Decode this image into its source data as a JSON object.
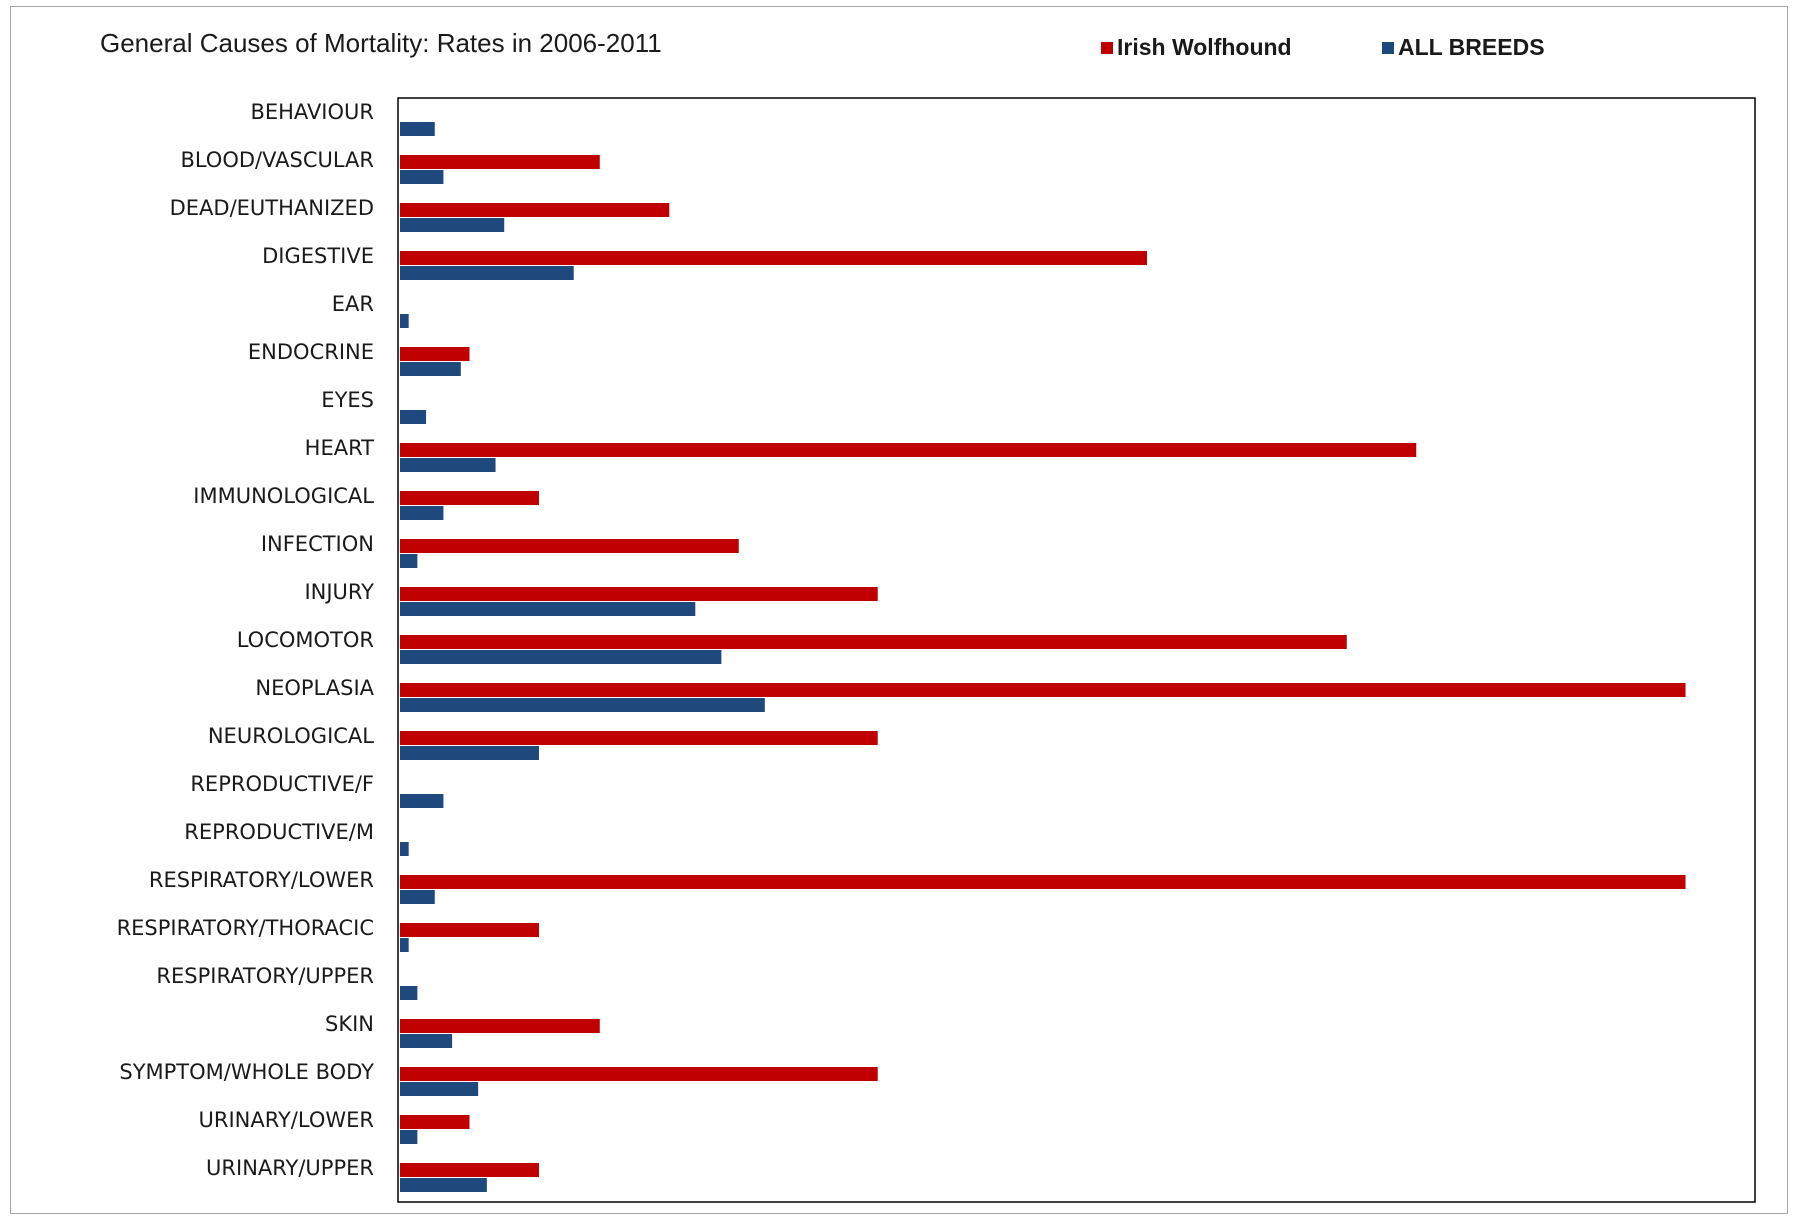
{
  "chart_data": {
    "type": "bar",
    "orientation": "horizontal",
    "title": "General Causes of Mortality: Rates in 2006-2011",
    "xlabel": "",
    "ylabel": "",
    "grid": false,
    "legend_position": "top-right",
    "categories": [
      "BEHAVIOUR",
      "BLOOD/VASCULAR",
      "DEAD/EUTHANIZED",
      "DIGESTIVE",
      "EAR",
      "ENDOCRINE",
      "EYES",
      "HEART",
      "IMMUNOLOGICAL",
      "INFECTION",
      "INJURY",
      "LOCOMOTOR",
      "NEOPLASIA",
      "NEUROLOGICAL",
      "REPRODUCTIVE/F",
      "REPRODUCTIVE/M",
      "RESPIRATORY/LOWER",
      "RESPIRATORY/THORACIC",
      "RESPIRATORY/UPPER",
      "SKIN",
      "SYMPTOM/WHOLE BODY",
      "URINARY/LOWER",
      "URINARY/UPPER"
    ],
    "series": [
      {
        "name": "Irish Wolfhound",
        "color": "#c00000",
        "values": [
          0,
          2.3,
          3.1,
          8.6,
          0,
          0.8,
          0,
          11.7,
          1.6,
          3.9,
          5.5,
          10.9,
          14.8,
          5.5,
          0,
          0,
          14.8,
          1.6,
          0,
          2.3,
          5.5,
          0.8,
          1.6
        ]
      },
      {
        "name": "ALL BREEDS",
        "color": "#1f497d",
        "values": [
          0.4,
          0.5,
          1.2,
          2.0,
          0.1,
          0.7,
          0.3,
          1.1,
          0.5,
          0.2,
          3.4,
          3.7,
          4.2,
          1.6,
          0.5,
          0.1,
          0.4,
          0.1,
          0.2,
          0.6,
          0.9,
          0.2,
          1.0
        ]
      }
    ],
    "xlim": [
      0,
      15.6
    ]
  }
}
